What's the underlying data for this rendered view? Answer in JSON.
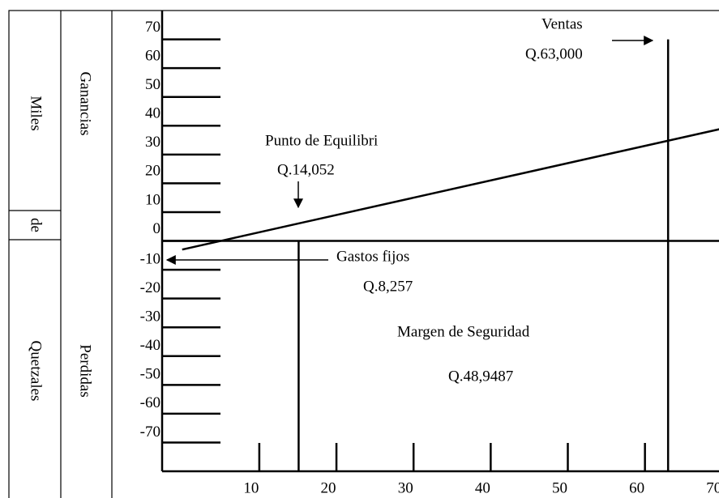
{
  "chart_data": {
    "type": "line",
    "side_labels": {
      "miles": "Miles",
      "de": "de",
      "quetzales": "Quetzales",
      "ganancias": "Ganancias",
      "perdidas": "Perdidas"
    },
    "x": [
      0,
      70
    ],
    "series": [
      {
        "values": [
          -3,
          39
        ],
        "color": "#000000"
      }
    ],
    "xlim": [
      -2.6,
      69.6
    ],
    "ylim": [
      -80,
      80
    ],
    "xticks": [
      10,
      20,
      30,
      40,
      50,
      60,
      70
    ],
    "yticks": [
      70,
      60,
      50,
      40,
      30,
      20,
      10,
      0,
      -10,
      -20,
      -30,
      -40,
      -50,
      -60,
      -70
    ],
    "vlines": [
      {
        "x": 63,
        "top": 70
      },
      {
        "x": 15.1,
        "top": 0
      }
    ],
    "annotations": {
      "ventas": "Ventas",
      "ventas_value": "Q.63,000",
      "equilibrio": "Punto de Equilibri",
      "equilibrio_value": "Q.14,052",
      "gastos": "Gastos fijos",
      "gastos_value": "Q.8,257",
      "margen": "Margen de Seguridad",
      "margen_value": "Q.48,9487"
    }
  }
}
